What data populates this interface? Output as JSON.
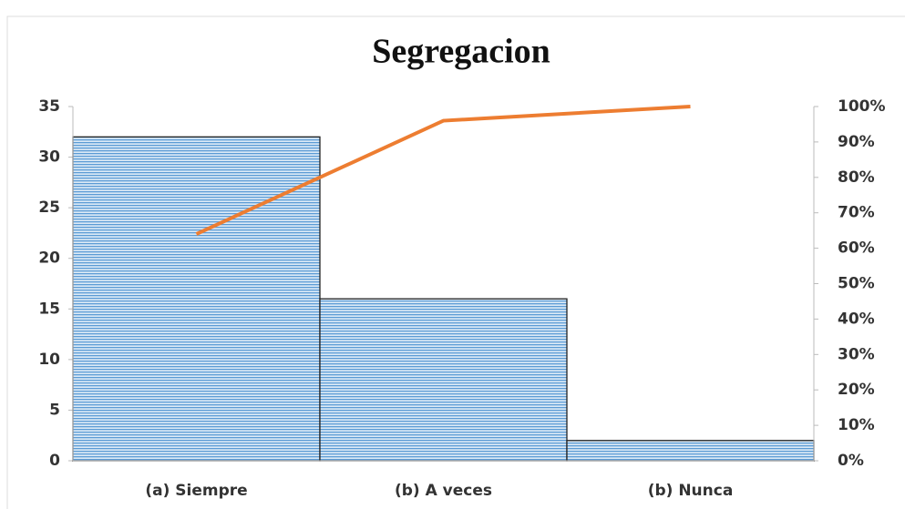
{
  "chart_data": {
    "type": "pareto",
    "title": "Segregacion",
    "categories": [
      "(a) Siempre",
      "(b) A veces",
      "(b) Nunca"
    ],
    "series": [
      {
        "color": "#9dc3e6",
        "values": [
          32,
          16,
          2
        ]
      },
      {
        "color": "#ed7d31",
        "values": [
          64,
          96,
          100
        ],
        "axis": "y2"
      }
    ],
    "ylim": [
      0,
      35
    ],
    "yticks": [
      0,
      5,
      10,
      15,
      20,
      25,
      30,
      35
    ],
    "y2lim": [
      0,
      100
    ],
    "y2ticks": [
      {
        "value": 0,
        "label": "0%"
      },
      {
        "value": 10,
        "label": "10%"
      },
      {
        "value": 20,
        "label": "20%"
      },
      {
        "value": 30,
        "label": "30%"
      },
      {
        "value": 40,
        "label": "40%"
      },
      {
        "value": 50,
        "label": "50%"
      },
      {
        "value": 60,
        "label": "60%"
      },
      {
        "value": 70,
        "label": "70%"
      },
      {
        "value": 80,
        "label": "80%"
      },
      {
        "value": 90,
        "label": "90%"
      },
      {
        "value": 100,
        "label": "100%"
      }
    ]
  }
}
